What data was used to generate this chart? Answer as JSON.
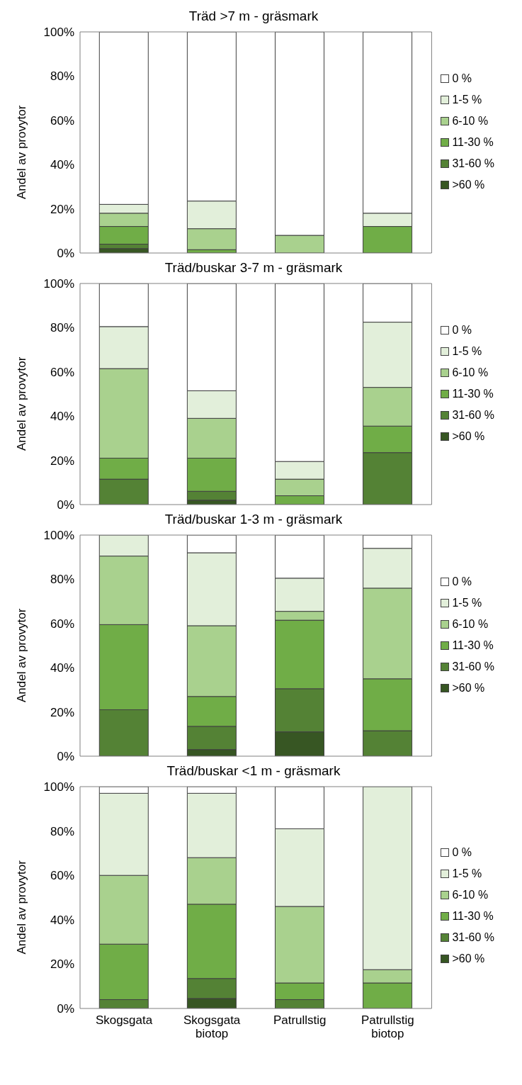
{
  "chart_data": [
    {
      "type": "bar",
      "stacked": true,
      "title": "Träd >7 m - gräsmark",
      "ylabel": "Andel av provytor",
      "categories": [
        null,
        null,
        null,
        null
      ],
      "tick_labels": "y",
      "legend": "right",
      "ylim": [
        0,
        100
      ],
      "yticks": [
        {
          "value": 0,
          "label": "0%"
        },
        {
          "value": 20,
          "label": "20%"
        },
        {
          "value": 40,
          "label": "40%"
        },
        {
          "value": 60,
          "label": "60%"
        },
        {
          "value": 80,
          "label": "80%"
        },
        {
          "value": 100,
          "label": "100%"
        }
      ],
      "series": [
        {
          "name": ">60 %",
          "color": "#375623",
          "values": [
            2,
            0,
            0,
            0
          ]
        },
        {
          "name": "31-60 %",
          "color": "#548235",
          "values": [
            2,
            0,
            0,
            0
          ]
        },
        {
          "name": "11-30 %",
          "color": "#70ad47",
          "values": [
            8,
            1.5,
            0,
            12
          ]
        },
        {
          "name": "6-10 %",
          "color": "#a9d18e",
          "values": [
            6,
            9.5,
            8,
            0
          ]
        },
        {
          "name": "1-5 %",
          "color": "#e2efda",
          "values": [
            4,
            12.5,
            0,
            6
          ]
        },
        {
          "name": "0 %",
          "color": "#ffffff",
          "values": [
            78,
            76.5,
            92,
            82
          ]
        }
      ]
    },
    {
      "type": "bar",
      "stacked": true,
      "title": "Träd/buskar 3-7 m - gräsmark",
      "ylabel": "Andel av provytor",
      "categories": [
        null,
        null,
        null,
        null
      ],
      "tick_labels": "y",
      "legend": "right",
      "ylim": [
        0,
        100
      ],
      "yticks": [
        {
          "value": 0,
          "label": "0%"
        },
        {
          "value": 20,
          "label": "20%"
        },
        {
          "value": 40,
          "label": "40%"
        },
        {
          "value": 60,
          "label": "60%"
        },
        {
          "value": 80,
          "label": "80%"
        },
        {
          "value": 100,
          "label": "100%"
        }
      ],
      "series": [
        {
          "name": ">60 %",
          "color": "#375623",
          "values": [
            0,
            2,
            0,
            0
          ]
        },
        {
          "name": "31-60 %",
          "color": "#548235",
          "values": [
            11.5,
            4,
            0,
            23.5
          ]
        },
        {
          "name": "11-30 %",
          "color": "#70ad47",
          "values": [
            9.5,
            15,
            4,
            12
          ]
        },
        {
          "name": "6-10 %",
          "color": "#a9d18e",
          "values": [
            40.5,
            18,
            7.5,
            17.5
          ]
        },
        {
          "name": "1-5 %",
          "color": "#e2efda",
          "values": [
            19,
            12.5,
            8,
            29.5
          ]
        },
        {
          "name": "0 %",
          "color": "#ffffff",
          "values": [
            19.5,
            48.5,
            80.5,
            17.5
          ]
        }
      ]
    },
    {
      "type": "bar",
      "stacked": true,
      "title": "Träd/buskar 1-3 m - gräsmark",
      "ylabel": "Andel av provytor",
      "categories": [
        null,
        null,
        null,
        null
      ],
      "tick_labels": "y",
      "legend": "right",
      "ylim": [
        0,
        100
      ],
      "yticks": [
        {
          "value": 0,
          "label": "0%"
        },
        {
          "value": 20,
          "label": "20%"
        },
        {
          "value": 40,
          "label": "40%"
        },
        {
          "value": 60,
          "label": "60%"
        },
        {
          "value": 80,
          "label": "80%"
        },
        {
          "value": 100,
          "label": "100%"
        }
      ],
      "series": [
        {
          "name": ">60 %",
          "color": "#375623",
          "values": [
            0,
            3,
            11,
            0
          ]
        },
        {
          "name": "31-60 %",
          "color": "#548235",
          "values": [
            21,
            10.5,
            19.5,
            11.5
          ]
        },
        {
          "name": "11-30 %",
          "color": "#70ad47",
          "values": [
            38.5,
            13.5,
            31,
            23.5
          ]
        },
        {
          "name": "6-10 %",
          "color": "#a9d18e",
          "values": [
            31,
            32,
            4,
            41
          ]
        },
        {
          "name": "1-5 %",
          "color": "#e2efda",
          "values": [
            9.5,
            33,
            15,
            18
          ]
        },
        {
          "name": "0 %",
          "color": "#ffffff",
          "values": [
            0,
            8,
            19.5,
            6
          ]
        }
      ]
    },
    {
      "type": "bar",
      "stacked": true,
      "title": "Träd/buskar <1 m - gräsmark",
      "ylabel": "Andel av provytor",
      "categories": [
        "Skogsgata",
        "Skogsgata biotop",
        "Patrullstig",
        "Patrullstig biotop"
      ],
      "legend": "right",
      "ylim": [
        0,
        100
      ],
      "yticks": [
        {
          "value": 0,
          "label": "0%"
        },
        {
          "value": 20,
          "label": "20%"
        },
        {
          "value": 40,
          "label": "40%"
        },
        {
          "value": 60,
          "label": "60%"
        },
        {
          "value": 80,
          "label": "80%"
        },
        {
          "value": 100,
          "label": "100%"
        }
      ],
      "series": [
        {
          "name": ">60 %",
          "color": "#375623",
          "values": [
            0,
            4.5,
            0,
            0
          ]
        },
        {
          "name": "31-60 %",
          "color": "#548235",
          "values": [
            4,
            9,
            4,
            0
          ]
        },
        {
          "name": "11-30 %",
          "color": "#70ad47",
          "values": [
            25,
            33.5,
            7.5,
            11.5
          ]
        },
        {
          "name": "6-10 %",
          "color": "#a9d18e",
          "values": [
            31,
            21,
            34.5,
            6
          ]
        },
        {
          "name": "1-5 %",
          "color": "#e2efda",
          "values": [
            37,
            29,
            35,
            82.5
          ]
        },
        {
          "name": "0 %",
          "color": "#ffffff",
          "values": [
            3,
            3,
            19,
            0
          ]
        }
      ]
    }
  ]
}
